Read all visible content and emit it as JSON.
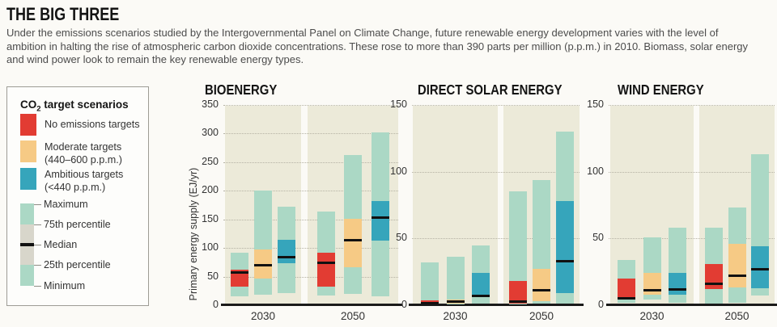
{
  "header": {
    "title": "THE BIG THREE",
    "description": "Under the emissions scenarios studied by the Intergovernmental Panel on Climate Change, future renewable energy development varies with the level of ambition in halting the rise of atmospheric carbon dioxide concentrations. These rose to more than 390 parts per million (p.p.m.) in 2010. Biomass, solar energy and wind power look to remain the key renewable energy types."
  },
  "legend": {
    "title_prefix": "CO",
    "title_sub": "2",
    "title_suffix": " target scenarios",
    "scenarios": [
      {
        "id": "no_targets",
        "label": "No emissions targets",
        "label2": "",
        "color": "#e23c33"
      },
      {
        "id": "moderate",
        "label": "Moderate targets",
        "label2": "(440–600 p.p.m.)",
        "color": "#f6ca85"
      },
      {
        "id": "ambitious",
        "label": "Ambitious targets",
        "label2": "(<440 p.p.m.)",
        "color": "#36a5bb"
      }
    ],
    "stats": [
      "Maximum",
      "75th percentile",
      "Median",
      "25th percentile",
      "Minimum"
    ]
  },
  "colors": {
    "range_green": "#abd8c5",
    "iqr_gray": "#d8d6cb",
    "panel_bg": "#ecead9",
    "median_black": "#111111",
    "red": "#e23c33",
    "orange": "#f6ca85",
    "teal": "#36a5bb"
  },
  "chart_data": [
    {
      "type": "box-range",
      "title": "BIOENERGY",
      "ylabel": "Primary energy supply (EJ/yr)",
      "unit": "EJ/yr",
      "ylim": [
        0,
        350
      ],
      "yticks": [
        0,
        50,
        100,
        150,
        200,
        250,
        300,
        350
      ],
      "grid": "dotted",
      "categories": [
        "2030",
        "2050"
      ],
      "groups": [
        {
          "year": "2030",
          "bars": [
            {
              "scenario": "No emissions targets",
              "min": 16,
              "p25": 32,
              "median": 57,
              "p75": 62,
              "max": 92
            },
            {
              "scenario": "Moderate targets",
              "min": 19,
              "p25": 46,
              "median": 70,
              "p75": 98,
              "max": 200
            },
            {
              "scenario": "Ambitious targets",
              "min": 21,
              "p25": 74,
              "median": 84,
              "p75": 115,
              "max": 172
            }
          ]
        },
        {
          "year": "2050",
          "bars": [
            {
              "scenario": "No emissions targets",
              "min": 17,
              "p25": 32,
              "median": 74,
              "p75": 92,
              "max": 164
            },
            {
              "scenario": "Moderate targets",
              "min": 20,
              "p25": 67,
              "median": 114,
              "p75": 151,
              "max": 262
            },
            {
              "scenario": "Ambitious targets",
              "min": 16,
              "p25": 113,
              "median": 153,
              "p75": 182,
              "max": 302
            }
          ]
        }
      ]
    },
    {
      "type": "box-range",
      "title": "DIRECT SOLAR ENERGY",
      "ylabel": "",
      "unit": "EJ/yr",
      "ylim": [
        0,
        150
      ],
      "yticks": [
        0,
        50,
        100,
        150
      ],
      "grid": "dotted",
      "categories": [
        "2030",
        "2050"
      ],
      "groups": [
        {
          "year": "2030",
          "bars": [
            {
              "scenario": "No emissions targets",
              "min": 0.3,
              "p25": 0.8,
              "median": 1.5,
              "p75": 3.5,
              "max": 32
            },
            {
              "scenario": "Moderate targets",
              "min": 0.5,
              "p25": 1.5,
              "median": 2.5,
              "p75": 4,
              "max": 36
            },
            {
              "scenario": "Ambitious targets",
              "min": 1,
              "p25": 6,
              "median": 7,
              "p75": 24,
              "max": 45
            }
          ]
        },
        {
          "year": "2050",
          "bars": [
            {
              "scenario": "No emissions targets",
              "min": 0.5,
              "p25": 1.5,
              "median": 2.5,
              "p75": 18,
              "max": 85
            },
            {
              "scenario": "Moderate targets",
              "min": 1,
              "p25": 3,
              "median": 11,
              "p75": 27,
              "max": 94
            },
            {
              "scenario": "Ambitious targets",
              "min": 1,
              "p25": 9,
              "median": 33,
              "p75": 78,
              "max": 130
            }
          ]
        }
      ]
    },
    {
      "type": "box-range",
      "title": "WIND ENERGY",
      "ylabel": "",
      "unit": "EJ/yr",
      "ylim": [
        0,
        150
      ],
      "yticks": [
        0,
        50,
        100,
        150
      ],
      "grid": "dotted",
      "categories": [
        "2030",
        "2050"
      ],
      "groups": [
        {
          "year": "2030",
          "bars": [
            {
              "scenario": "No emissions targets",
              "min": 2,
              "p25": 4,
              "median": 5,
              "p75": 20,
              "max": 34
            },
            {
              "scenario": "Moderate targets",
              "min": 4,
              "p25": 8,
              "median": 11,
              "p75": 24,
              "max": 51
            },
            {
              "scenario": "Ambitious targets",
              "min": 2,
              "p25": 8,
              "median": 12,
              "p75": 24,
              "max": 58
            }
          ]
        },
        {
          "year": "2050",
          "bars": [
            {
              "scenario": "No emissions targets",
              "min": 1,
              "p25": 12,
              "median": 16,
              "p75": 31,
              "max": 58
            },
            {
              "scenario": "Moderate targets",
              "min": 2,
              "p25": 13,
              "median": 22,
              "p75": 46,
              "max": 73
            },
            {
              "scenario": "Ambitious targets",
              "min": 7,
              "p25": 13,
              "median": 27,
              "p75": 44,
              "max": 113
            }
          ]
        }
      ]
    }
  ]
}
